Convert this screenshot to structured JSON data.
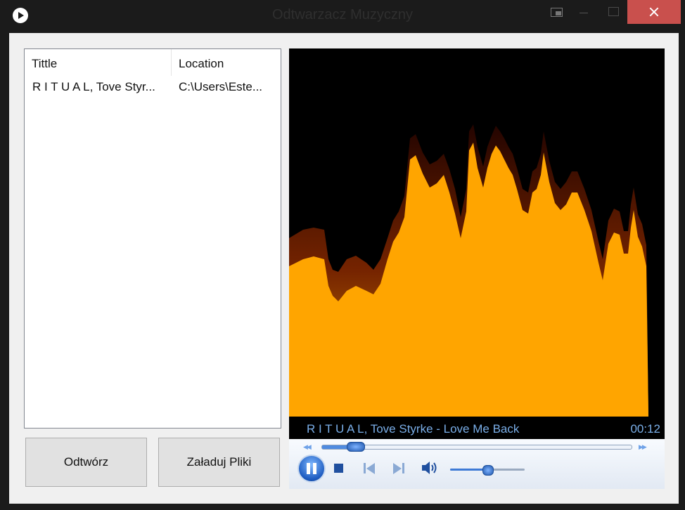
{
  "window": {
    "title": "Odtwarzacz Muzyczny"
  },
  "playlist": {
    "columns": [
      "Tittle",
      "Location"
    ],
    "rows": [
      {
        "title": "R I T U A L, Tove Styr...",
        "location": "C:\\Users\\Este..."
      }
    ]
  },
  "buttons": {
    "play_label": "Odtwórz",
    "load_label": "Załaduj Pliki"
  },
  "player": {
    "now_playing": "R I T U A L, Tove Styrke - Love Me Back",
    "elapsed": "00:12",
    "seek_fraction": 0.09,
    "volume_fraction": 0.5,
    "colors": {
      "viz_fill": "#ffa500",
      "viz_dark": "#5a0a00",
      "accent": "#7aaee8"
    }
  }
}
